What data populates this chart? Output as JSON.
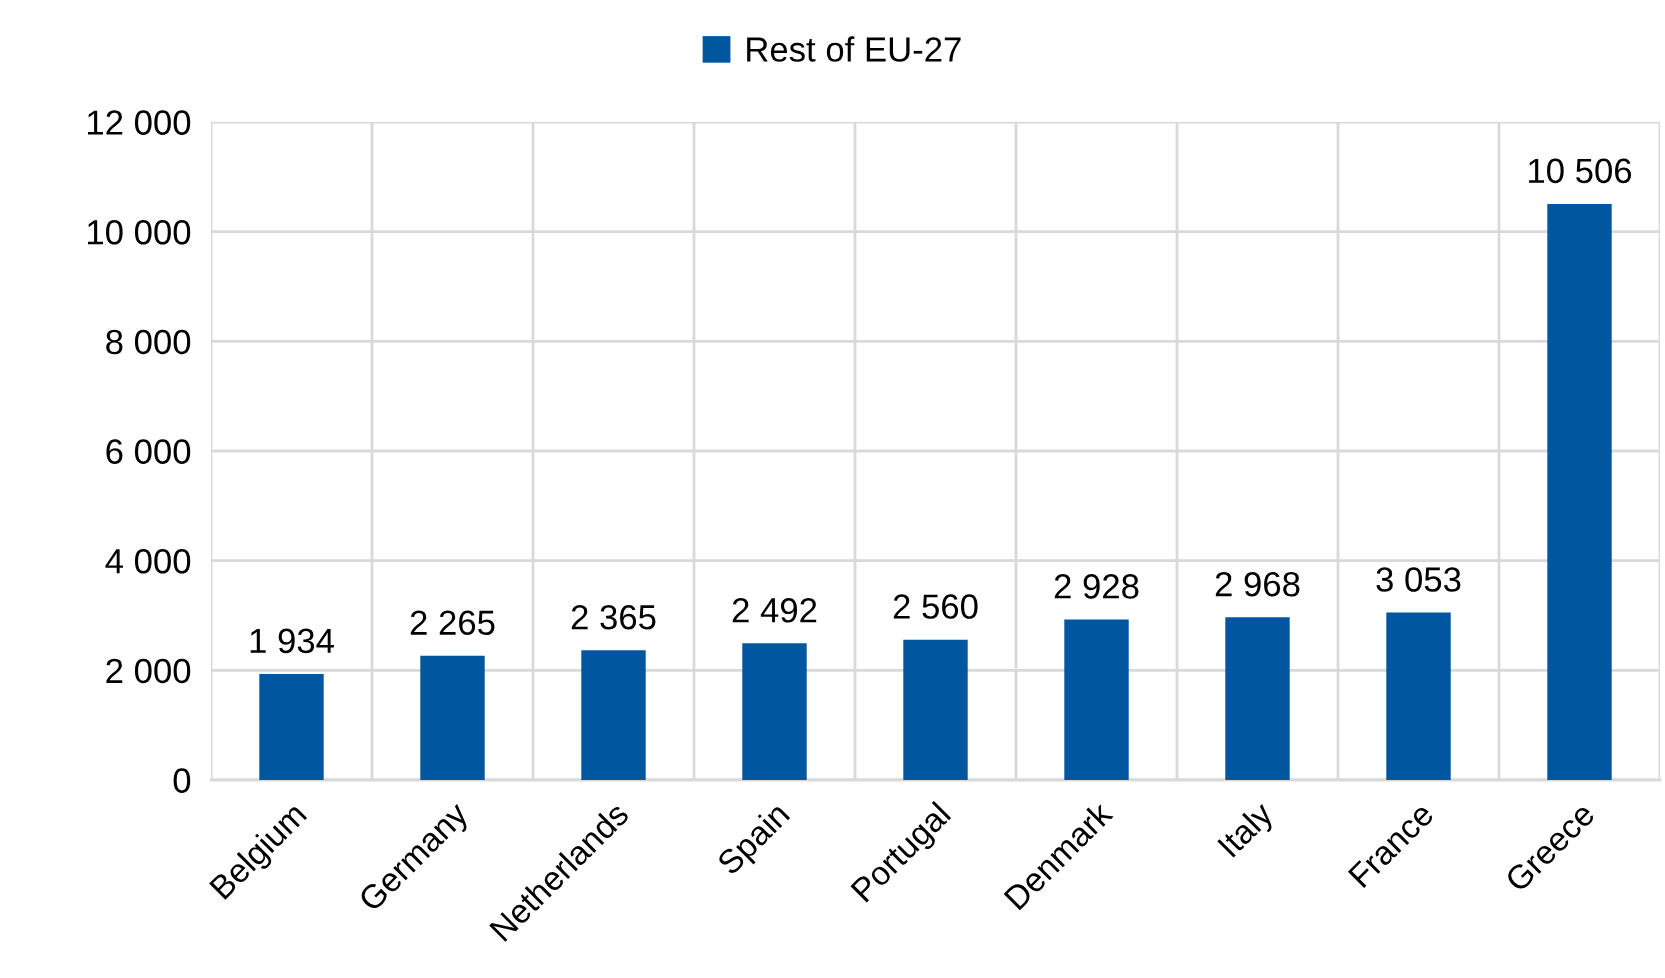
{
  "chart_data": {
    "type": "bar",
    "categories": [
      "Belgium",
      "Germany",
      "Netherlands",
      "Spain",
      "Portugal",
      "Denmark",
      "Italy",
      "France",
      "Greece"
    ],
    "series": [
      {
        "name": "Rest of EU-27",
        "color": "#0057a0",
        "values": [
          1934,
          2265,
          2365,
          2492,
          2560,
          2928,
          2968,
          3053,
          10506
        ],
        "value_labels": [
          "1 934",
          "2 265",
          "2 365",
          "2 492",
          "2 560",
          "2 928",
          "2 968",
          "3 053",
          "10 506"
        ]
      }
    ],
    "ylim": [
      0,
      12000
    ],
    "yticks": [
      {
        "value": 0,
        "label": "0"
      },
      {
        "value": 2000,
        "label": "2 000"
      },
      {
        "value": 4000,
        "label": "4 000"
      },
      {
        "value": 6000,
        "label": "6 000"
      },
      {
        "value": 8000,
        "label": "8 000"
      },
      {
        "value": 10000,
        "label": "10 000"
      },
      {
        "value": 12000,
        "label": "12 000"
      }
    ],
    "grid": true,
    "legend": "top"
  }
}
